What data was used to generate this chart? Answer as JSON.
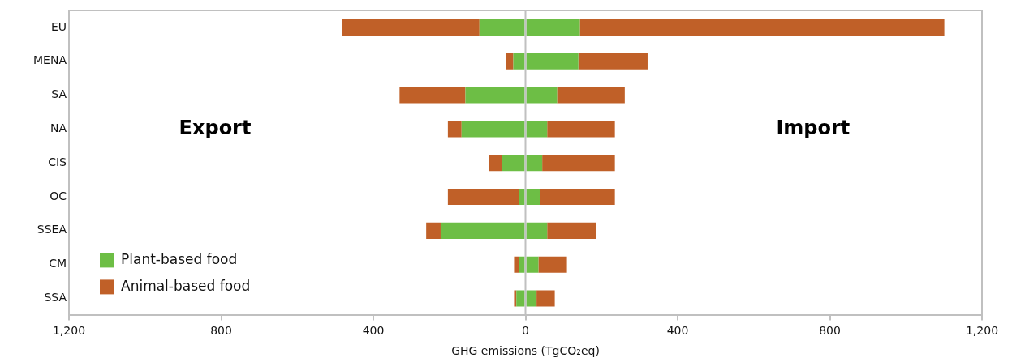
{
  "chart_data": {
    "type": "bar",
    "orientation": "horizontal",
    "stacked": true,
    "categories": [
      "EU",
      "MENA",
      "SA",
      "NA",
      "CIS",
      "OC",
      "SSEA",
      "CM",
      "SSA"
    ],
    "series": [
      {
        "name": "Plant-based food",
        "color": "#6dbe45",
        "values": [
          -121,
          -32,
          -158,
          -168,
          -62,
          -18,
          -223,
          -18,
          -24
        ]
      },
      {
        "color": "#6dbe45",
        "values": [
          143,
          139,
          83,
          57,
          44,
          38,
          57,
          34,
          29
        ]
      },
      {
        "name": "Animal-based food",
        "color": "#c06028",
        "values": [
          -361,
          -20,
          -173,
          -36,
          -34,
          -186,
          -38,
          -12,
          -6
        ]
      },
      {
        "color": "#c06028",
        "values": [
          958,
          182,
          178,
          178,
          191,
          197,
          129,
          75,
          48
        ]
      }
    ],
    "xlim": [
      -1200,
      1200
    ],
    "xticks": [
      {
        "value": -1200,
        "label": "1,200"
      },
      {
        "value": -800,
        "label": "800"
      },
      {
        "value": -400,
        "label": "400"
      },
      0,
      400,
      800,
      {
        "value": 1200,
        "label": "1,200"
      }
    ],
    "xlabel": "GHG emissions (TgCO₂eq)",
    "annotations": [
      "Export",
      "Import"
    ],
    "ref_lines": [
      {
        "axis": "x",
        "value": 0,
        "color": "#c0c0c0"
      }
    ],
    "legend": "bottom left",
    "grid": false
  }
}
